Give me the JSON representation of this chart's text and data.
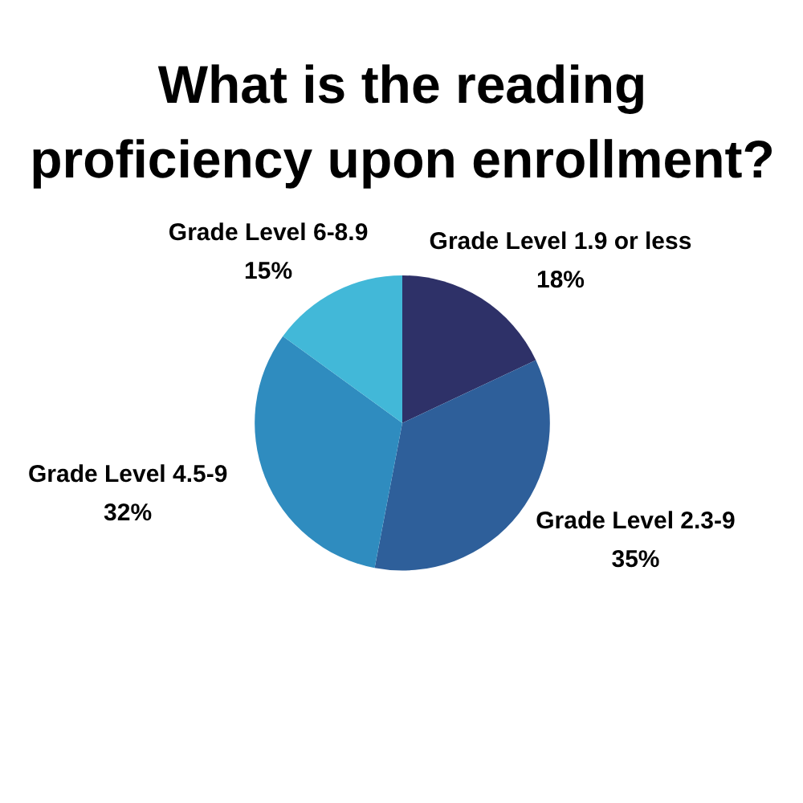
{
  "chart_data": {
    "type": "pie",
    "title": "What is the reading\nproficiency upon enrollment?",
    "categories": [
      "Grade Level 1.9 or less",
      "Grade Level 2.3-9",
      "Grade Level 4.5-9",
      "Grade Level 6-8.9"
    ],
    "values": [
      18,
      35,
      32,
      15
    ],
    "colors": [
      "#2e3168",
      "#2e5f9a",
      "#2f8cbf",
      "#42b8d8"
    ],
    "value_labels": [
      "18%",
      "35%",
      "32%",
      "15%"
    ]
  }
}
